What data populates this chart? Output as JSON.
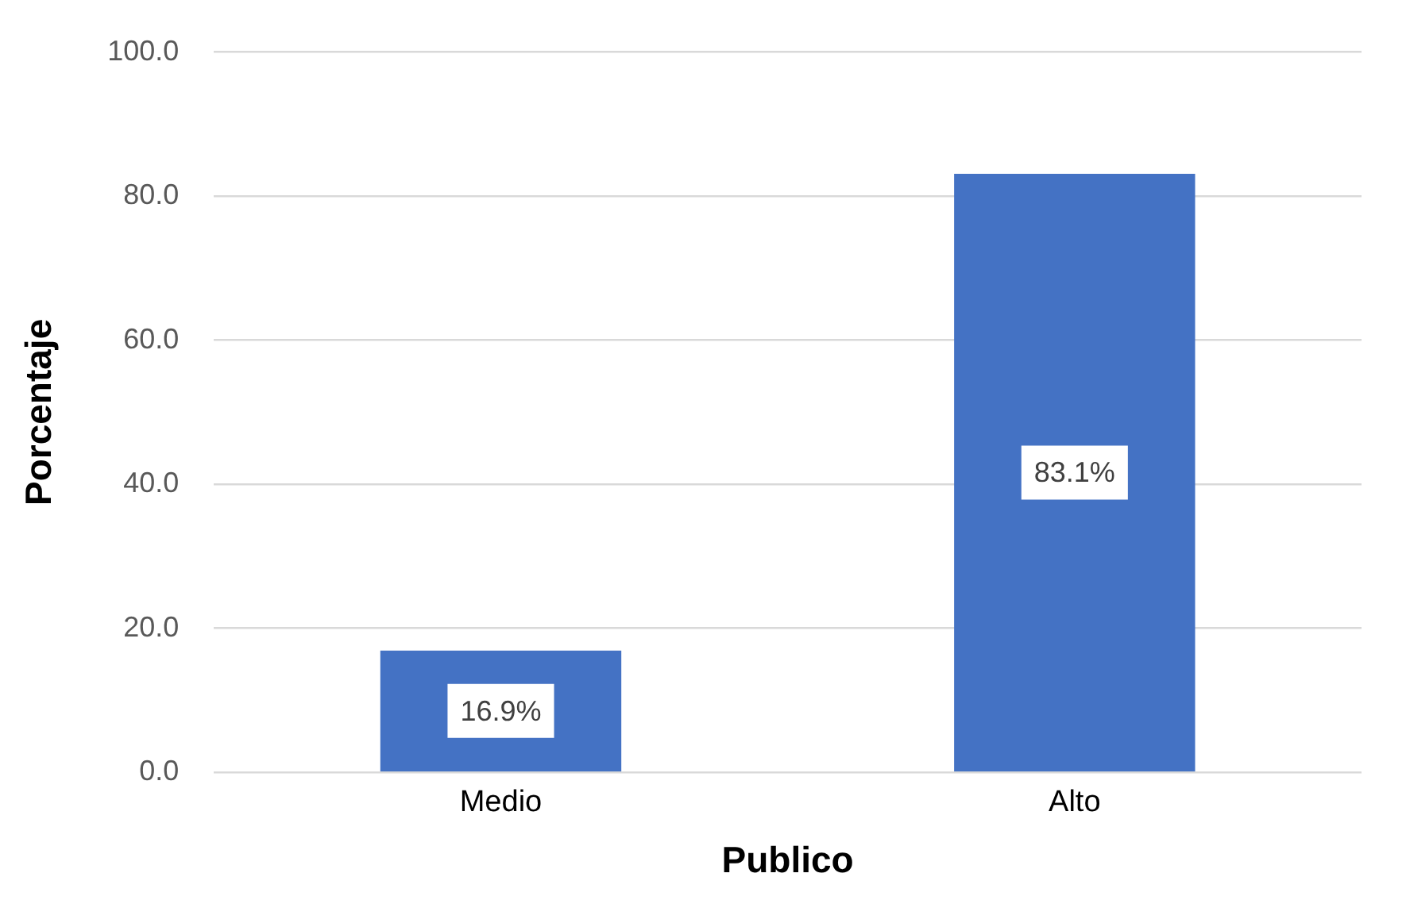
{
  "chart_data": {
    "type": "bar",
    "xlabel": "Publico",
    "ylabel": "Porcentaje",
    "categories": [
      "Medio",
      "Alto"
    ],
    "values": [
      16.9,
      83.1
    ],
    "color": "#4472c4",
    "value_labels": [
      "16.9%",
      "83.1%"
    ],
    "ylim": [
      0,
      100
    ],
    "yticks": [
      {
        "value": 0,
        "label": "0.0"
      },
      {
        "value": 20,
        "label": "20.0"
      },
      {
        "value": 40,
        "label": "40.0"
      },
      {
        "value": 60,
        "label": "60.0"
      },
      {
        "value": 80,
        "label": "80.0"
      },
      {
        "value": 100,
        "label": "100.0"
      }
    ],
    "grid": "y",
    "legend": false
  }
}
